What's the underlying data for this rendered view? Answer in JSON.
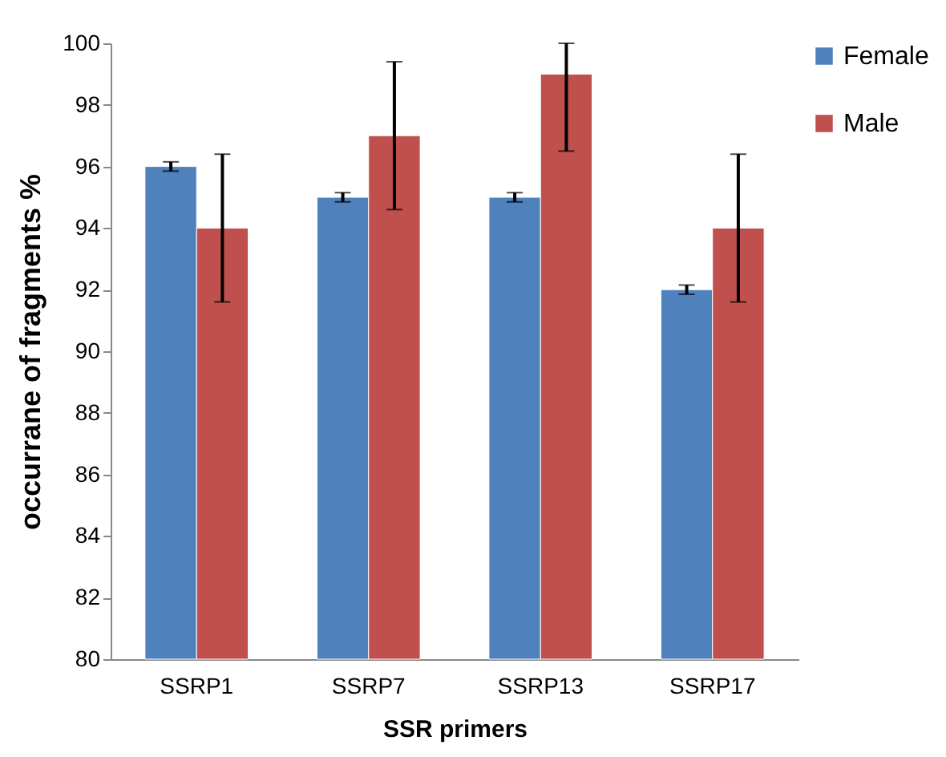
{
  "chart_data": {
    "type": "bar",
    "xlabel": "SSR primers",
    "ylabel": "occurrane of fragments %",
    "categories": [
      "SSRP1",
      "SSRP7",
      "SSRP13",
      "SSRP17"
    ],
    "series": [
      {
        "name": "Female",
        "color": "#4f81bd",
        "values": [
          96,
          95,
          95,
          92
        ],
        "errors": [
          0.15,
          0.15,
          0.15,
          0.15
        ]
      },
      {
        "name": "Male",
        "color": "#c0504d",
        "values": [
          94,
          97,
          99,
          94
        ],
        "errors": [
          2.4,
          2.4,
          [
            96.5,
            100
          ],
          2.4
        ]
      }
    ],
    "ylim": [
      80,
      100
    ],
    "yticks": [
      80,
      82,
      84,
      86,
      88,
      90,
      92,
      94,
      96,
      98,
      100
    ],
    "grid": false,
    "legend": "right"
  }
}
